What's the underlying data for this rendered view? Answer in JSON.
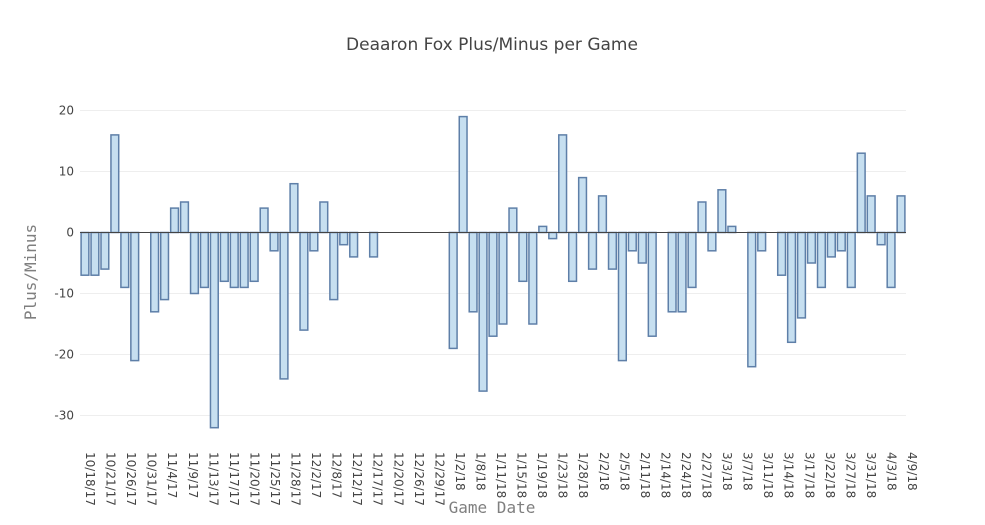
{
  "chart_data": {
    "type": "bar",
    "title": "Deaaron Fox Plus/Minus per Game",
    "xlabel": "Game Date",
    "ylabel": "Plus/Minus",
    "ylim": [
      -35.5,
      22
    ],
    "y_ticks": [
      20,
      10,
      0,
      -10,
      -20,
      -30
    ],
    "x_tick_labels": [
      "10/18/17",
      "10/21/17",
      "10/26/17",
      "10/31/17",
      "11/4/17",
      "11/9/17",
      "11/13/17",
      "11/17/17",
      "11/20/17",
      "11/25/17",
      "11/28/17",
      "12/2/17",
      "12/8/17",
      "12/12/17",
      "12/17/17",
      "12/20/17",
      "12/26/17",
      "12/29/17",
      "1/2/18",
      "1/8/18",
      "1/11/18",
      "1/15/18",
      "1/19/18",
      "1/23/18",
      "1/28/18",
      "2/2/18",
      "2/5/18",
      "2/11/18",
      "2/14/18",
      "2/24/18",
      "2/27/18",
      "3/3/18",
      "3/7/18",
      "3/11/18",
      "3/14/18",
      "3/17/18",
      "3/22/18",
      "3/27/18",
      "3/31/18",
      "4/3/18",
      "4/9/18"
    ],
    "grid": true,
    "legend": "none",
    "bar_fill": "#c6dff0",
    "bar_outline": "#5e7fa8",
    "series": [
      {
        "values": [
          -7,
          -7,
          -6,
          16,
          -9,
          -21,
          null,
          -13,
          -11,
          4,
          5,
          -10,
          -9,
          -32,
          -8,
          -9,
          -9,
          -8,
          4,
          -3,
          -24,
          8,
          -16,
          -3,
          5,
          -11,
          -2,
          -4,
          null,
          -4,
          null,
          null,
          null,
          null,
          null,
          null,
          null,
          -19,
          19,
          -13,
          -26,
          -17,
          -15,
          4,
          -8,
          -15,
          1,
          -1,
          16,
          -8,
          9,
          -6,
          6,
          -6,
          -21,
          -3,
          -5,
          -17,
          null,
          -13,
          -13,
          -9,
          5,
          -3,
          7,
          1,
          null,
          -22,
          -3,
          null,
          -7,
          -18,
          -14,
          -5,
          -9,
          -4,
          -3,
          -9,
          13,
          6,
          -2,
          -9,
          6
        ]
      }
    ]
  }
}
